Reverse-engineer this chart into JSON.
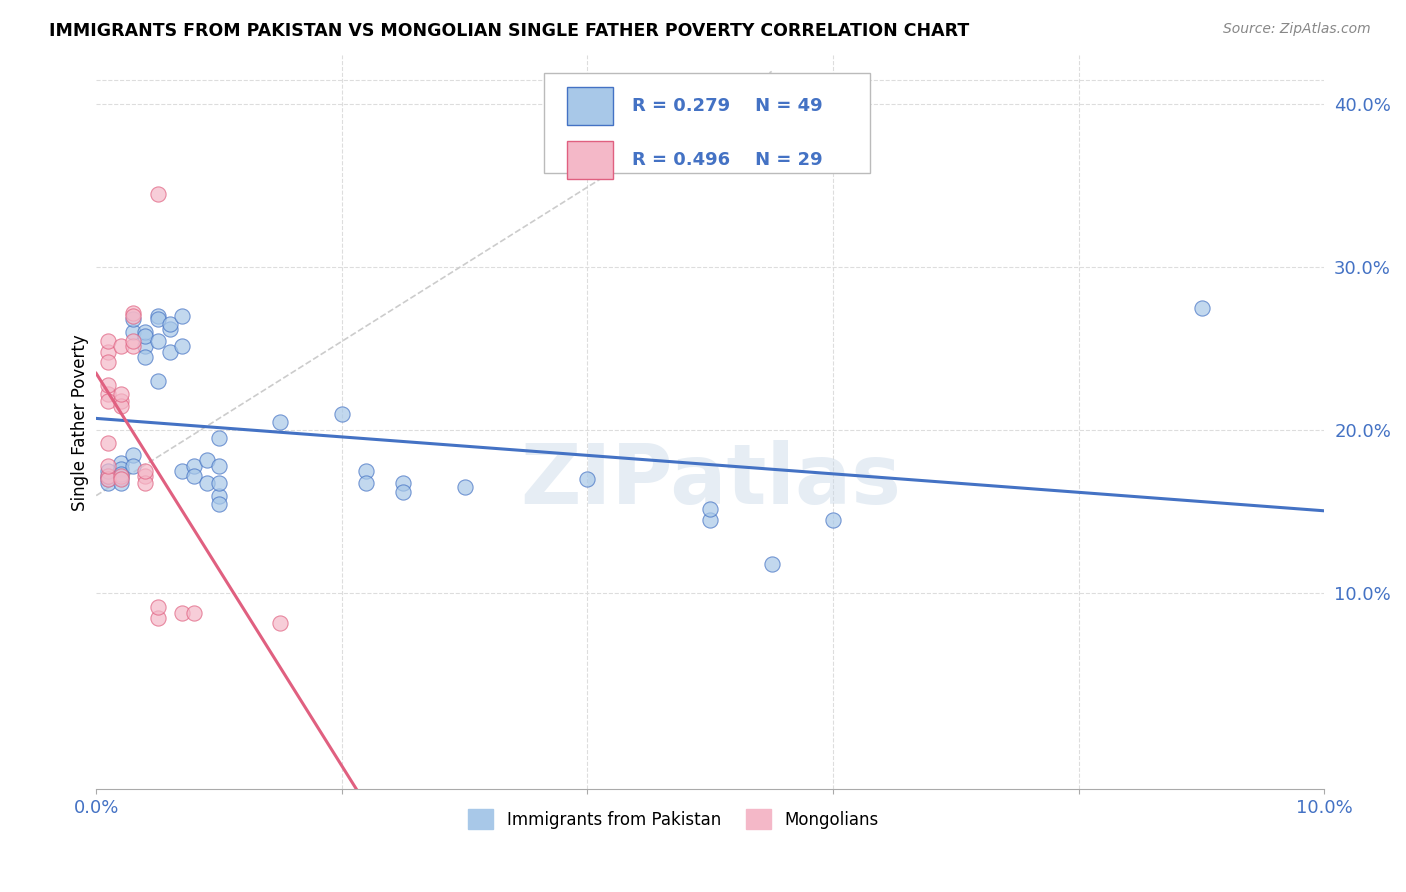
{
  "title": "IMMIGRANTS FROM PAKISTAN VS MONGOLIAN SINGLE FATHER POVERTY CORRELATION CHART",
  "source": "Source: ZipAtlas.com",
  "ylabel": "Single Father Poverty",
  "legend_label1": "Immigrants from Pakistan",
  "legend_label2": "Mongolians",
  "r1": 0.279,
  "n1": 49,
  "r2": 0.496,
  "n2": 29,
  "color_blue": "#a8c8e8",
  "color_pink": "#f4b8c8",
  "color_blue_line": "#4472c4",
  "color_pink_line": "#e06080",
  "color_text_blue": "#4472c4",
  "watermark": "ZIPatlas",
  "pakistan_points": [
    [
      0.001,
      0.17
    ],
    [
      0.001,
      0.168
    ],
    [
      0.001,
      0.172
    ],
    [
      0.001,
      0.175
    ],
    [
      0.002,
      0.171
    ],
    [
      0.002,
      0.18
    ],
    [
      0.002,
      0.176
    ],
    [
      0.002,
      0.168
    ],
    [
      0.002,
      0.173
    ],
    [
      0.003,
      0.185
    ],
    [
      0.003,
      0.178
    ],
    [
      0.003,
      0.26
    ],
    [
      0.003,
      0.268
    ],
    [
      0.004,
      0.252
    ],
    [
      0.004,
      0.245
    ],
    [
      0.004,
      0.26
    ],
    [
      0.004,
      0.258
    ],
    [
      0.005,
      0.255
    ],
    [
      0.005,
      0.27
    ],
    [
      0.005,
      0.268
    ],
    [
      0.005,
      0.23
    ],
    [
      0.006,
      0.262
    ],
    [
      0.006,
      0.248
    ],
    [
      0.006,
      0.265
    ],
    [
      0.007,
      0.252
    ],
    [
      0.007,
      0.27
    ],
    [
      0.007,
      0.175
    ],
    [
      0.008,
      0.178
    ],
    [
      0.008,
      0.172
    ],
    [
      0.009,
      0.182
    ],
    [
      0.009,
      0.168
    ],
    [
      0.01,
      0.195
    ],
    [
      0.01,
      0.178
    ],
    [
      0.01,
      0.16
    ],
    [
      0.01,
      0.155
    ],
    [
      0.01,
      0.168
    ],
    [
      0.015,
      0.205
    ],
    [
      0.02,
      0.21
    ],
    [
      0.022,
      0.175
    ],
    [
      0.022,
      0.168
    ],
    [
      0.025,
      0.168
    ],
    [
      0.025,
      0.162
    ],
    [
      0.03,
      0.165
    ],
    [
      0.04,
      0.17
    ],
    [
      0.05,
      0.145
    ],
    [
      0.05,
      0.152
    ],
    [
      0.055,
      0.118
    ],
    [
      0.06,
      0.145
    ],
    [
      0.09,
      0.275
    ]
  ],
  "mongolian_points": [
    [
      0.001,
      0.172
    ],
    [
      0.001,
      0.17
    ],
    [
      0.001,
      0.178
    ],
    [
      0.001,
      0.192
    ],
    [
      0.001,
      0.222
    ],
    [
      0.001,
      0.228
    ],
    [
      0.001,
      0.218
    ],
    [
      0.001,
      0.248
    ],
    [
      0.001,
      0.255
    ],
    [
      0.001,
      0.242
    ],
    [
      0.002,
      0.218
    ],
    [
      0.002,
      0.215
    ],
    [
      0.002,
      0.172
    ],
    [
      0.002,
      0.17
    ],
    [
      0.002,
      0.222
    ],
    [
      0.002,
      0.252
    ],
    [
      0.003,
      0.272
    ],
    [
      0.003,
      0.252
    ],
    [
      0.003,
      0.27
    ],
    [
      0.003,
      0.255
    ],
    [
      0.004,
      0.172
    ],
    [
      0.004,
      0.168
    ],
    [
      0.004,
      0.175
    ],
    [
      0.005,
      0.085
    ],
    [
      0.005,
      0.092
    ],
    [
      0.005,
      0.345
    ],
    [
      0.007,
      0.088
    ],
    [
      0.008,
      0.088
    ],
    [
      0.015,
      0.082
    ]
  ],
  "xlim": [
    0.0,
    0.1
  ],
  "ylim": [
    -0.02,
    0.43
  ],
  "yticks": [
    0.1,
    0.2,
    0.3,
    0.4
  ],
  "ytick_labels": [
    "10.0%",
    "20.0%",
    "30.0%",
    "40.0%"
  ],
  "xticks": [
    0.0,
    0.02,
    0.04,
    0.06,
    0.08,
    0.1
  ],
  "xtick_labels": [
    "0.0%",
    "",
    "",
    "",
    "",
    "10.0%"
  ]
}
